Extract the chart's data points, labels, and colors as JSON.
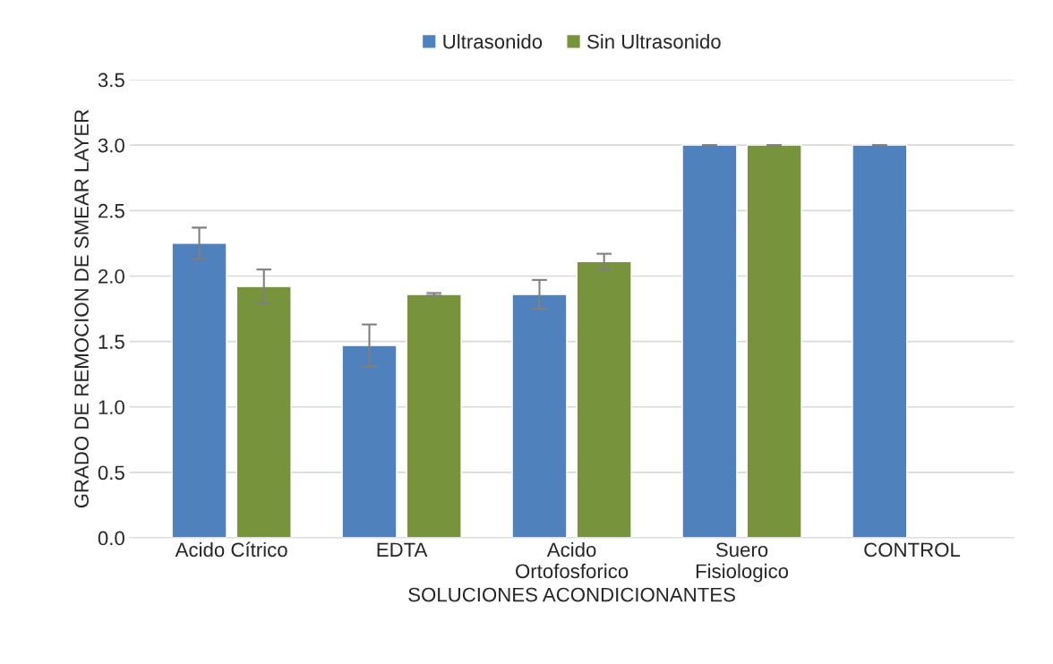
{
  "chart_data": {
    "type": "bar",
    "xlabel": "SOLUCIONES ACONDICIONANTES",
    "ylabel": "GRADO DE REMOCION DE SMEAR LAYER",
    "categories": [
      "Acido Cítrico",
      "EDTA",
      "Acido\nOrtofosforico",
      "Suero\nFisiologico",
      "CONTROL"
    ],
    "series": [
      {
        "name": "Ultrasonido",
        "color": "#4f81bd",
        "values": [
          2.25,
          1.47,
          1.86,
          3.0,
          3.0
        ],
        "errors": [
          0.12,
          0.16,
          0.11,
          0,
          0
        ]
      },
      {
        "name": "Sin Ultrasonido",
        "color": "#77933c",
        "values": [
          1.92,
          1.86,
          2.11,
          3.0,
          null
        ],
        "errors": [
          0.13,
          0.01,
          0.06,
          0,
          null
        ]
      }
    ],
    "ylim": [
      0,
      3.5
    ],
    "yticks": [
      {
        "value": 0,
        "label": "0.0"
      },
      {
        "value": 0.5,
        "label": "0.5"
      },
      {
        "value": 1,
        "label": "1.0"
      },
      {
        "value": 1.5,
        "label": "1.5"
      },
      {
        "value": 2,
        "label": "2.0"
      },
      {
        "value": 2.5,
        "label": "2.5"
      },
      {
        "value": 3,
        "label": "3.0"
      },
      {
        "value": 3.5,
        "label": "3.5"
      }
    ],
    "grid": "y",
    "legend": "top"
  }
}
